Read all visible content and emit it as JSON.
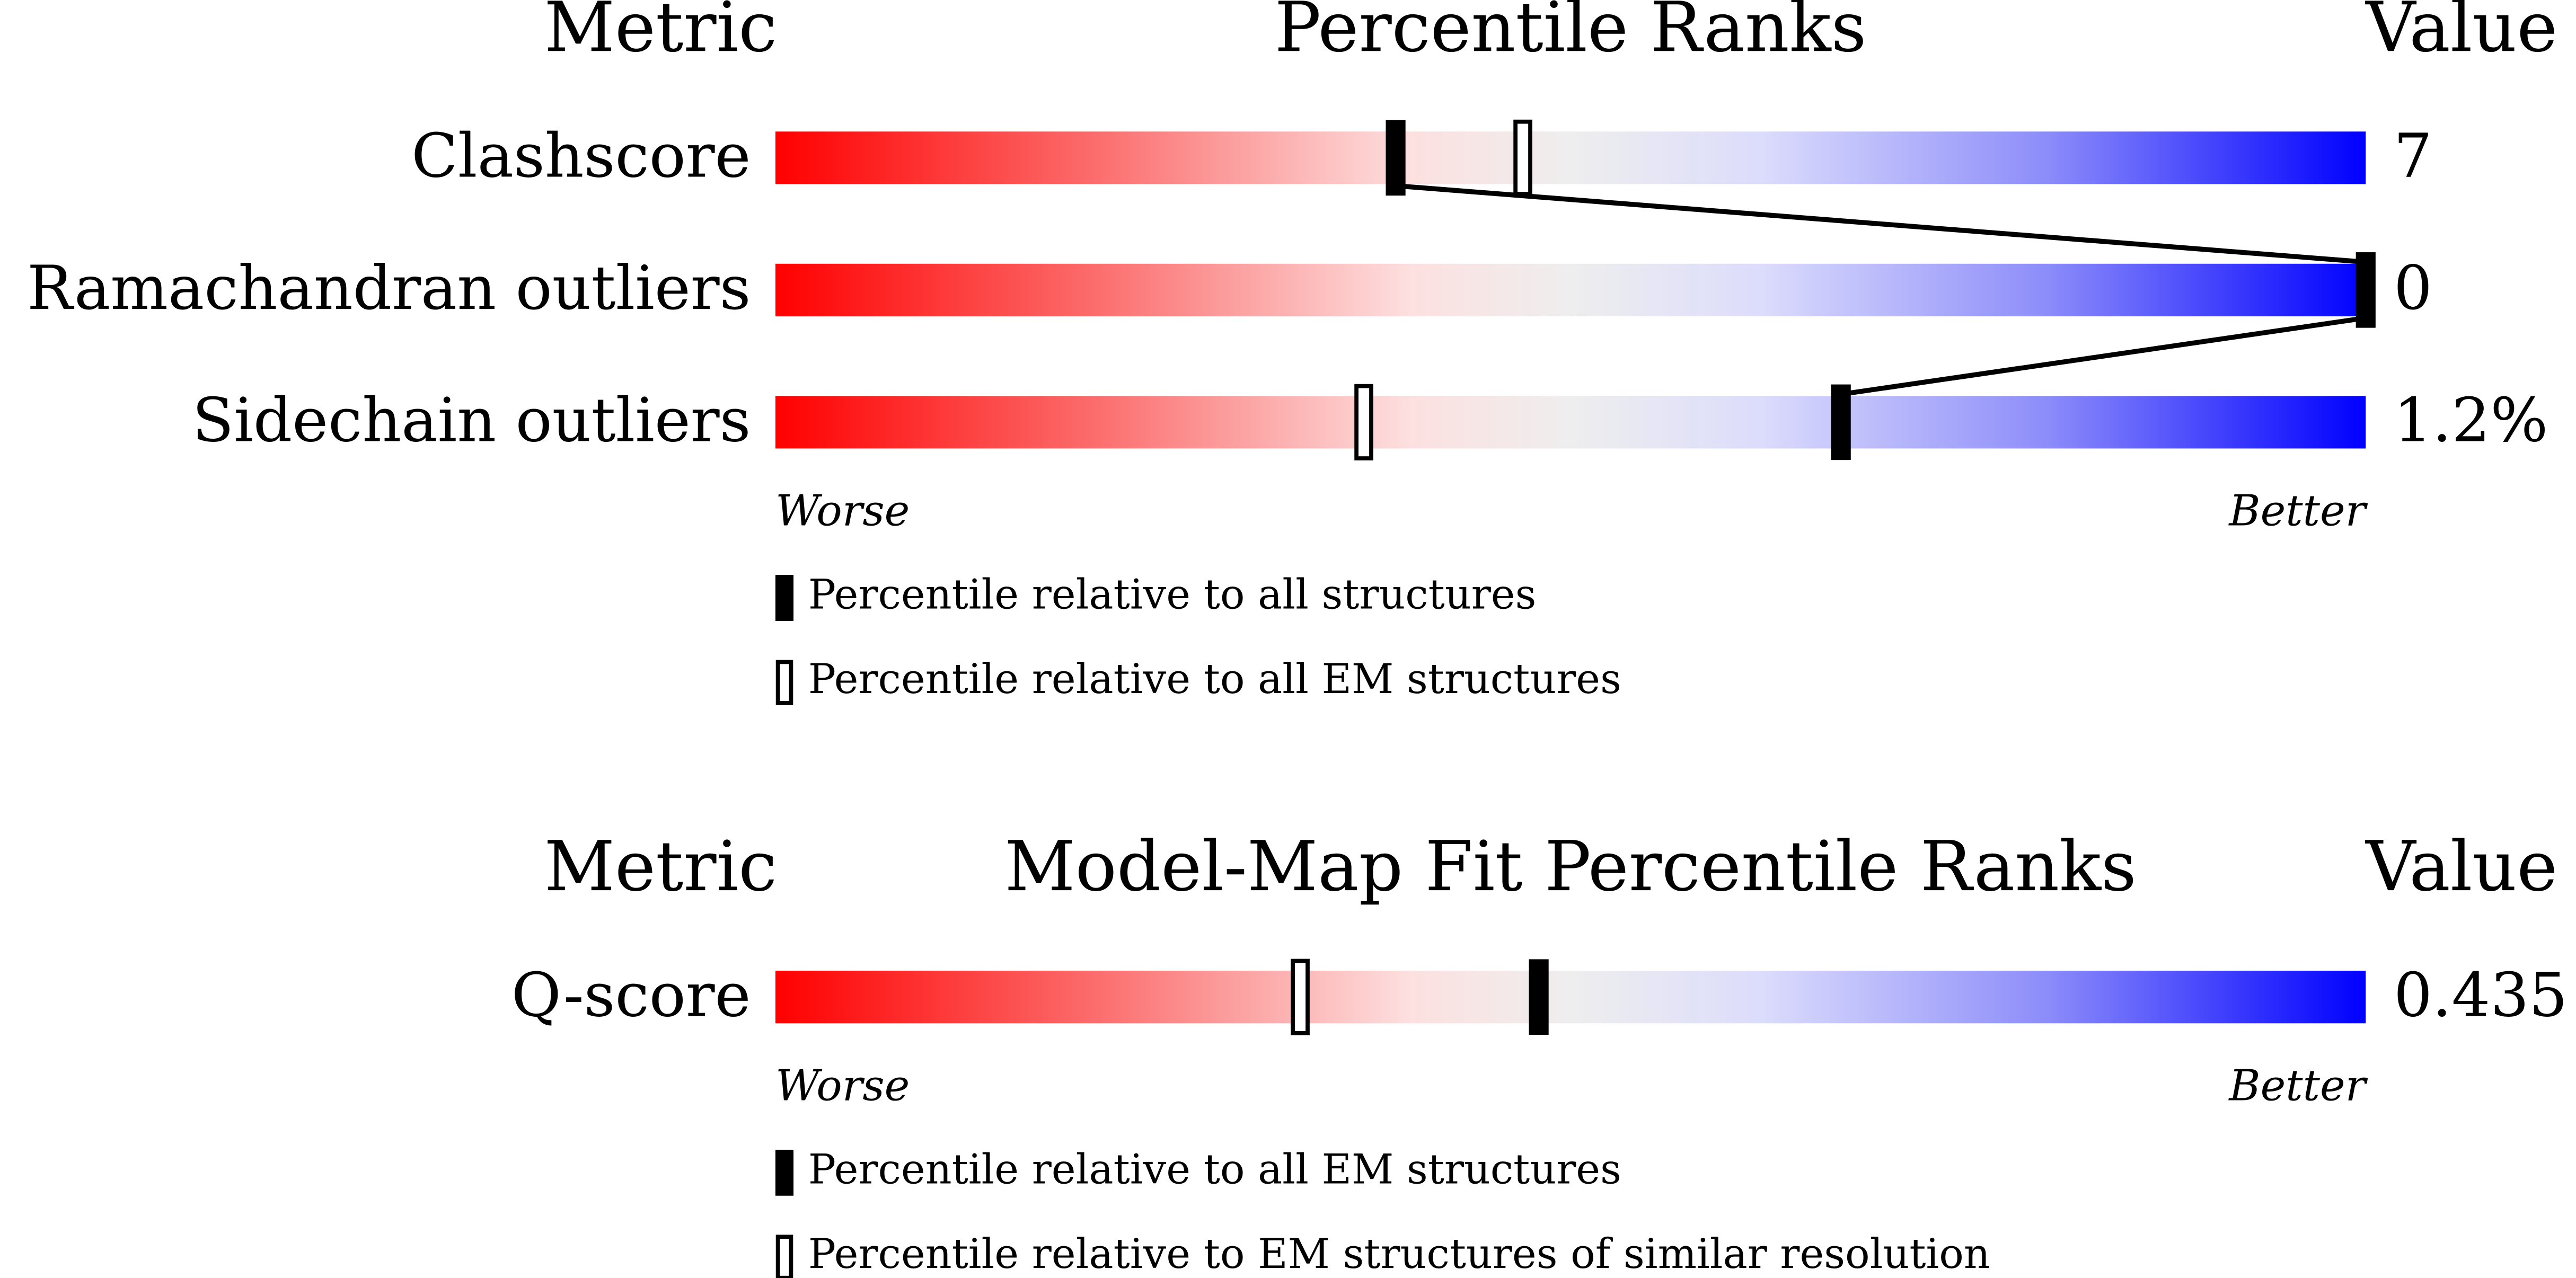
{
  "chart_data": [
    {
      "type": "slider",
      "metric_header": "Metric",
      "title": "Percentile Ranks",
      "value_header": "Value",
      "categories": [
        "Clashscore",
        "Ramachandran outliers",
        "Sidechain outliers"
      ],
      "metric_values": [
        "7",
        "0",
        "1.2%"
      ],
      "xlim": [
        0,
        100
      ],
      "worse_label": "Worse",
      "better_label": "Better",
      "series": [
        {
          "name": "Percentile relative to all structures",
          "marker": "filled",
          "color": "#000000",
          "values": [
            39,
            100,
            67
          ]
        },
        {
          "name": "Percentile relative to all EM structures",
          "marker": "open",
          "color": "#000000",
          "values": [
            47,
            null,
            37
          ]
        }
      ]
    },
    {
      "type": "slider",
      "metric_header": "Metric",
      "title": "Model-Map Fit Percentile Ranks",
      "value_header": "Value",
      "categories": [
        "Q-score"
      ],
      "metric_values": [
        "0.435"
      ],
      "xlim": [
        0,
        100
      ],
      "worse_label": "Worse",
      "better_label": "Better",
      "series": [
        {
          "name": "Percentile relative to all EM structures",
          "marker": "filled",
          "color": "#000000",
          "values": [
            48
          ]
        },
        {
          "name": "Percentile relative to EM structures of similar resolution",
          "marker": "open",
          "color": "#000000",
          "values": [
            33
          ]
        }
      ]
    }
  ]
}
